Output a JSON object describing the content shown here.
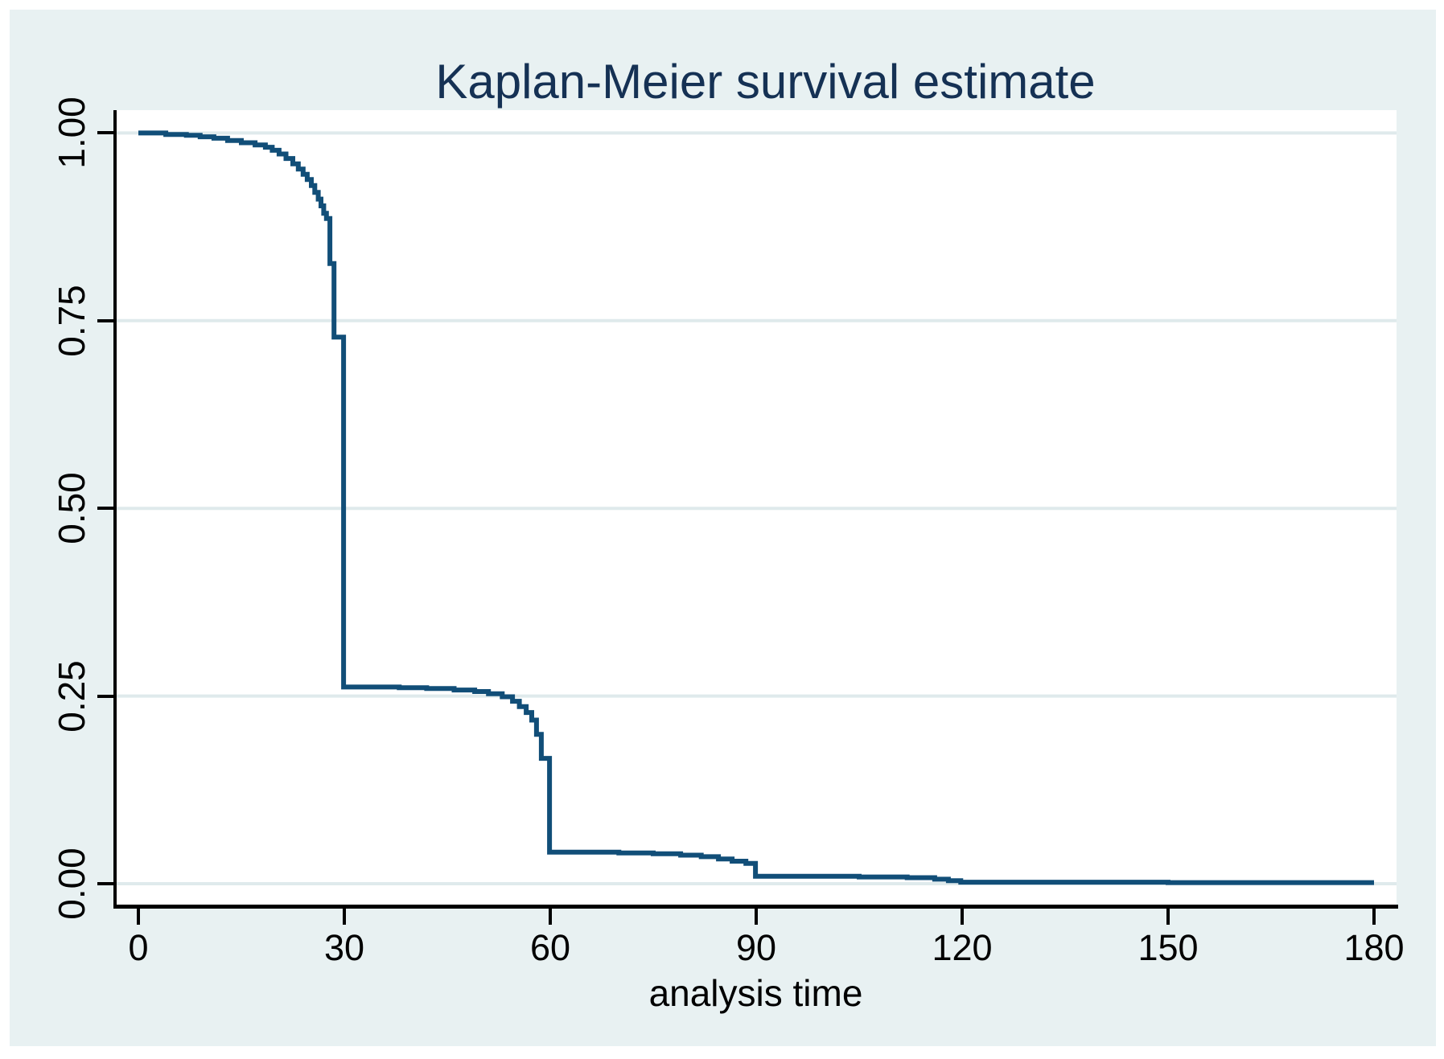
{
  "title": "Kaplan-Meier survival estimate",
  "x_axis": {
    "label": "analysis time",
    "tick_labels": [
      "0",
      "30",
      "60",
      "90",
      "120",
      "150",
      "180"
    ]
  },
  "y_axis": {
    "tick_labels": [
      "0.00",
      "0.25",
      "0.50",
      "0.75",
      "1.00"
    ]
  },
  "colors": {
    "canvas_background": "#e8f1f2",
    "plot_background": "#ffffff",
    "gridline": "#dfeaec",
    "line": "#114e78",
    "title_text": "#153154",
    "axis_and_labels": "#000000"
  },
  "chart_data": {
    "type": "line",
    "subtype": "kaplan-meier-step",
    "title": "Kaplan-Meier survival estimate",
    "xlabel": "analysis time",
    "ylabel": "",
    "xlim": [
      0,
      180
    ],
    "ylim": [
      0,
      1
    ],
    "x_ticks": [
      0,
      30,
      60,
      90,
      120,
      150,
      180
    ],
    "x_tick_labels": [
      "0",
      "30",
      "60",
      "90",
      "120",
      "150",
      "180"
    ],
    "y_ticks": [
      0,
      0.25,
      0.5,
      0.75,
      1.0
    ],
    "y_tick_labels": [
      "0.00",
      "0.25",
      "0.50",
      "0.75",
      "1.00"
    ],
    "grid": "horizontal gridlines at y ticks",
    "legend": "none",
    "series": [
      {
        "name": "KM survival estimate",
        "note": "step points [time, survival-after-time]; survival drops to value at given time",
        "steps": [
          [
            0,
            1.0
          ],
          [
            4,
            0.998
          ],
          [
            7,
            0.997
          ],
          [
            9,
            0.995
          ],
          [
            11,
            0.993
          ],
          [
            13,
            0.99
          ],
          [
            15,
            0.987
          ],
          [
            17,
            0.984
          ],
          [
            18.5,
            0.981
          ],
          [
            19.5,
            0.977
          ],
          [
            20.5,
            0.972
          ],
          [
            21.5,
            0.966
          ],
          [
            22.5,
            0.959
          ],
          [
            23.3,
            0.952
          ],
          [
            24,
            0.945
          ],
          [
            24.6,
            0.938
          ],
          [
            25.2,
            0.93
          ],
          [
            25.7,
            0.921
          ],
          [
            26.2,
            0.912
          ],
          [
            26.6,
            0.903
          ],
          [
            27,
            0.893
          ],
          [
            27.4,
            0.886
          ],
          [
            27.9,
            0.826
          ],
          [
            28.5,
            0.728
          ],
          [
            29.9,
            0.262
          ],
          [
            38,
            0.261
          ],
          [
            42,
            0.26
          ],
          [
            46,
            0.258
          ],
          [
            49,
            0.256
          ],
          [
            51,
            0.253
          ],
          [
            53,
            0.249
          ],
          [
            54.5,
            0.243
          ],
          [
            55.5,
            0.236
          ],
          [
            56.5,
            0.228
          ],
          [
            57.3,
            0.218
          ],
          [
            58,
            0.199
          ],
          [
            58.7,
            0.167
          ],
          [
            59.9,
            0.042
          ],
          [
            70,
            0.041
          ],
          [
            75,
            0.04
          ],
          [
            79,
            0.038
          ],
          [
            82,
            0.036
          ],
          [
            84.5,
            0.033
          ],
          [
            86.5,
            0.03
          ],
          [
            88.5,
            0.027
          ],
          [
            89.9,
            0.01
          ],
          [
            105,
            0.009
          ],
          [
            112,
            0.008
          ],
          [
            116,
            0.006
          ],
          [
            118,
            0.004
          ],
          [
            119.8,
            0.002
          ],
          [
            150,
            0.0015
          ],
          [
            180,
            0.0015
          ]
        ]
      }
    ]
  }
}
